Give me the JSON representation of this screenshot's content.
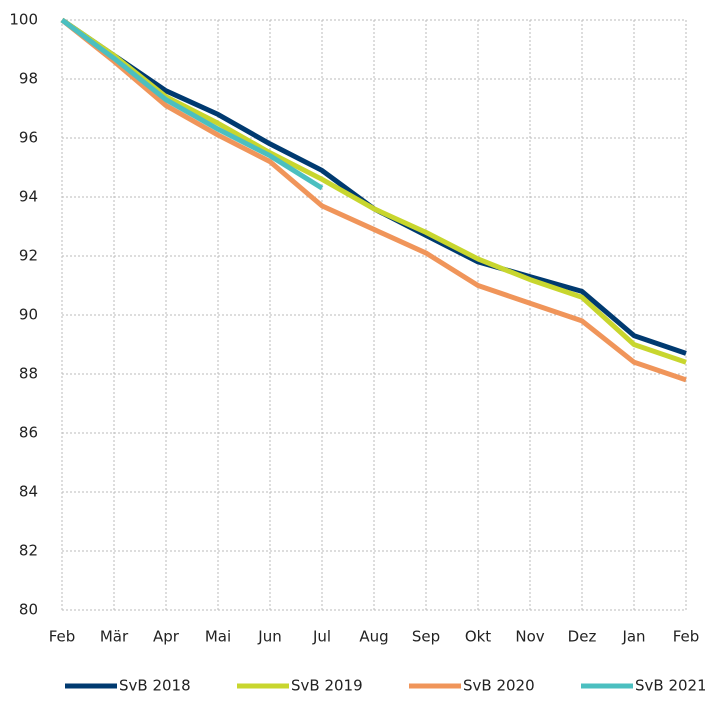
{
  "chart_data": {
    "type": "line",
    "categories": [
      "Feb",
      "Mär",
      "Apr",
      "Mai",
      "Jun",
      "Jul",
      "Aug",
      "Sep",
      "Okt",
      "Nov",
      "Dez",
      "Jan",
      "Feb"
    ],
    "series": [
      {
        "name": "SvB 2018",
        "color": "#003a70",
        "values": [
          100,
          98.8,
          97.6,
          96.8,
          95.8,
          94.9,
          93.6,
          92.7,
          91.8,
          91.3,
          90.8,
          89.3,
          88.7
        ]
      },
      {
        "name": "SvB 2019",
        "color": "#c8d62e",
        "values": [
          100,
          98.8,
          97.4,
          96.5,
          95.5,
          94.6,
          93.6,
          92.8,
          91.9,
          91.2,
          90.6,
          89.0,
          88.4
        ]
      },
      {
        "name": "SvB 2020",
        "color": "#f0955a",
        "values": [
          100,
          98.6,
          97.1,
          96.1,
          95.2,
          93.7,
          92.9,
          92.1,
          91.0,
          90.4,
          89.8,
          88.4,
          87.8
        ]
      },
      {
        "name": "SvB 2021",
        "color": "#4bbfc0",
        "values": [
          100,
          98.7,
          97.3,
          96.3,
          95.4,
          94.3,
          null,
          null,
          null,
          null,
          null,
          null,
          null
        ]
      }
    ],
    "ylim": [
      80,
      100
    ],
    "yticks": [
      80,
      82,
      84,
      86,
      88,
      90,
      92,
      94,
      96,
      98,
      100
    ],
    "grid": true,
    "legend": "bottom"
  }
}
